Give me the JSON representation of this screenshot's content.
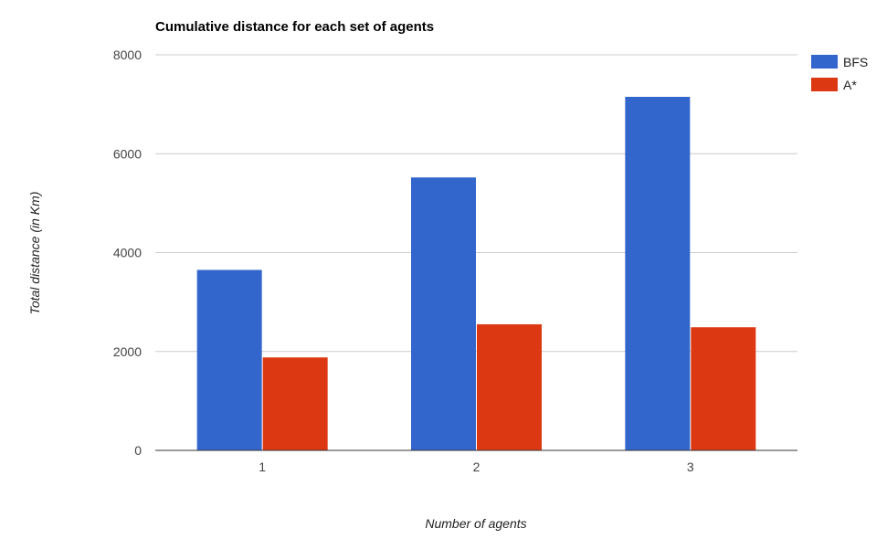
{
  "chart_data": {
    "type": "bar",
    "title": "Cumulative distance for each set of agents",
    "xlabel": "Number of agents",
    "ylabel": "Total distance (in Km)",
    "categories": [
      "1",
      "2",
      "3"
    ],
    "series": [
      {
        "name": "BFS",
        "values": [
          3650,
          5520,
          7150
        ],
        "color": "#3366cc"
      },
      {
        "name": "A*",
        "values": [
          1880,
          2550,
          2490
        ],
        "color": "#dc3912"
      }
    ],
    "ylim": [
      0,
      8000
    ],
    "yticks": [
      "0",
      "2000",
      "4000",
      "6000",
      "8000"
    ],
    "grid": true,
    "legend": "right"
  }
}
